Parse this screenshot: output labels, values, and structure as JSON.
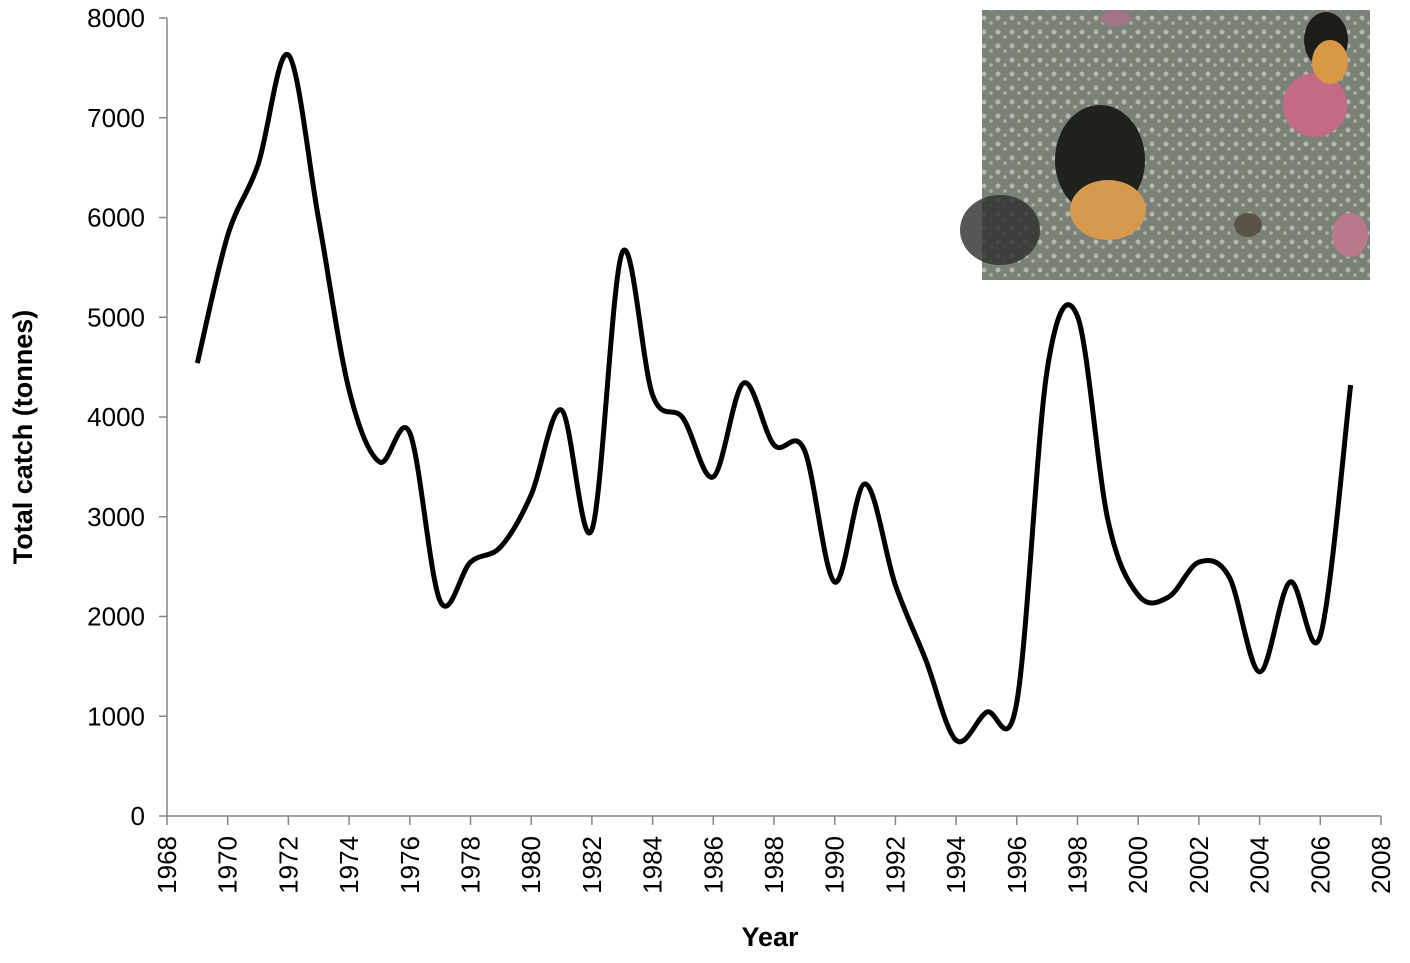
{
  "chart_data": {
    "type": "line",
    "x_label": "Year",
    "y_label": "Total catch (tonnes)",
    "x": [
      1969,
      1970,
      1971,
      1972,
      1973,
      1974,
      1975,
      1976,
      1977,
      1978,
      1979,
      1980,
      1981,
      1982,
      1983,
      1984,
      1985,
      1986,
      1987,
      1988,
      1989,
      1990,
      1991,
      1992,
      1993,
      1994,
      1995,
      1996,
      1997,
      1998,
      1999,
      2000,
      2001,
      2002,
      2003,
      2004,
      2005,
      2006,
      2007
    ],
    "series": [
      {
        "color": "#000000",
        "values": [
          4540,
          5820,
          6530,
          7630,
          5975,
          4270,
          3550,
          3840,
          2155,
          2545,
          2700,
          3220,
          4070,
          2870,
          5650,
          4220,
          3990,
          3400,
          4340,
          3720,
          3670,
          2345,
          3330,
          2315,
          1565,
          760,
          1040,
          1140,
          4470,
          5010,
          2970,
          2215,
          2195,
          2545,
          2395,
          1445,
          2345,
          1805,
          4320
        ]
      }
    ],
    "xlim": [
      1968,
      2008
    ],
    "xticks": [
      1968,
      1970,
      1972,
      1974,
      1976,
      1978,
      1980,
      1982,
      1984,
      1986,
      1988,
      1990,
      1992,
      1994,
      1996,
      1998,
      2000,
      2002,
      2004,
      2006,
      2008
    ],
    "ylim": [
      0,
      8000
    ],
    "yticks": [
      0,
      1000,
      2000,
      3000,
      4000,
      5000,
      6000,
      7000,
      8000
    ],
    "grid": false,
    "smooth": true
  }
}
